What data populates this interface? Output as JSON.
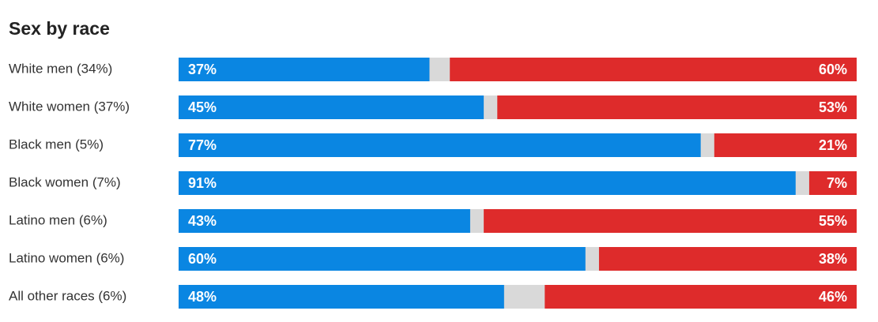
{
  "chart_data": {
    "type": "bar",
    "title": "Sex by race",
    "orientation": "horizontal",
    "categories": [
      "White men (34%)",
      "White women (37%)",
      "Black men (5%)",
      "Black women (7%)",
      "Latino men (6%)",
      "Latino women (6%)",
      "All other races (6%)"
    ],
    "xlim": [
      0,
      100
    ],
    "series": [
      {
        "color": "#0a86e2",
        "values": [
          37,
          45,
          77,
          91,
          43,
          60,
          48
        ],
        "value_labels": [
          "37%",
          "45%",
          "77%",
          "91%",
          "43%",
          "60%",
          "48%"
        ]
      },
      {
        "color": "#de2b2b",
        "values": [
          60,
          53,
          21,
          7,
          55,
          38,
          46
        ],
        "value_labels": [
          "60%",
          "53%",
          "21%",
          "7%",
          "55%",
          "38%",
          "46%"
        ]
      }
    ]
  }
}
